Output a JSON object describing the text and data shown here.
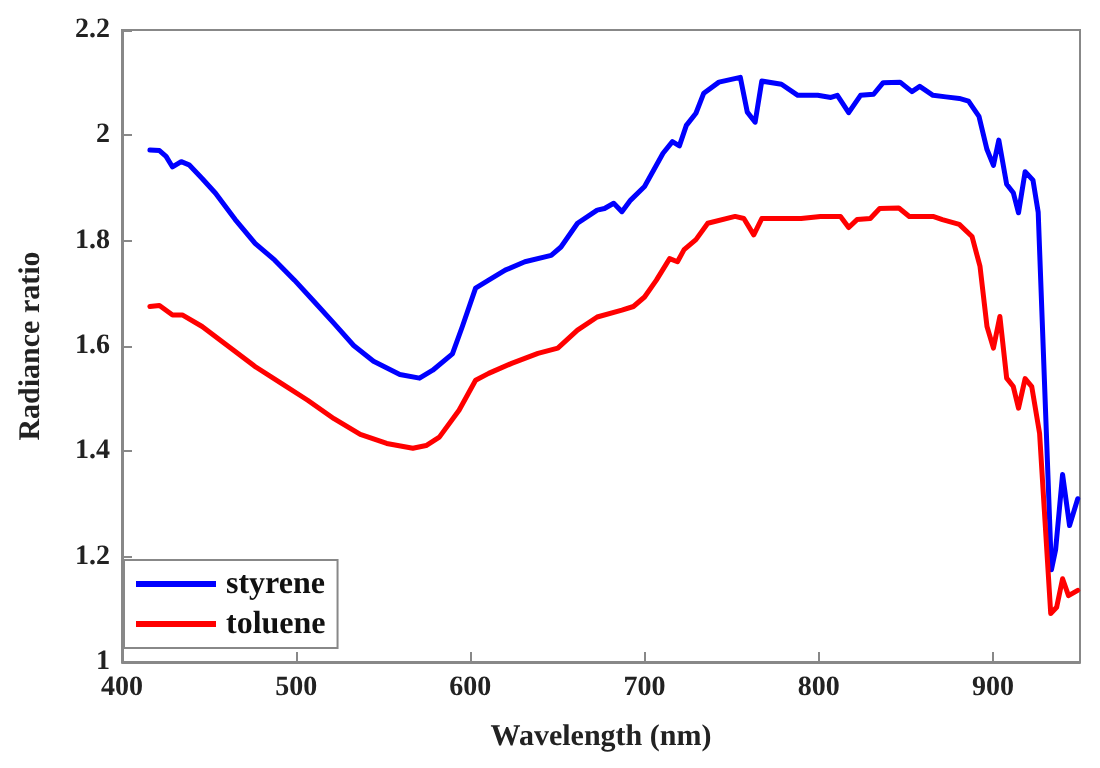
{
  "chart_data": {
    "type": "line",
    "xlabel": "Wavelength (nm)",
    "ylabel": "Radiance ratio",
    "xlim": [
      400,
      950
    ],
    "xticks": [
      400,
      500,
      600,
      700,
      800,
      900
    ],
    "ylim": [
      1,
      2.2
    ],
    "yticks": [
      1,
      1.2,
      1.4,
      1.6,
      1.8,
      2,
      2.2
    ],
    "grid": false,
    "legend": "bottom left",
    "marker": "none",
    "line_style": "solid",
    "series": [
      {
        "name": "styrene",
        "color": "#0000ff",
        "x": [
          416,
          421.5,
          425.3,
          429,
          434,
          438.5,
          446,
          453.7,
          465,
          476.4,
          487.7,
          499,
          510.4,
          521.7,
          533,
          544.4,
          559.5,
          570.8,
          578.4,
          589.7,
          595.4,
          603,
          610.5,
          620,
          631.3,
          646.4,
          652,
          661.5,
          672.8,
          677,
          682.3,
          687,
          692,
          700,
          710.6,
          716,
          720,
          724,
          729.5,
          734,
          742.7,
          755,
          759,
          763.5,
          767.3,
          778.6,
          788,
          799.4,
          807,
          810.7,
          817.2,
          824,
          831.5,
          837,
          846.7,
          853.5,
          858,
          865.6,
          873,
          880.7,
          886,
          892,
          896.6,
          900.3,
          903.4,
          907.9,
          911.7,
          914.7,
          918.5,
          923,
          926,
          933.6,
          936,
          940,
          944,
          948.7
        ],
        "values": [
          1.972,
          1.971,
          1.96,
          1.94,
          1.95,
          1.944,
          1.918,
          1.89,
          1.84,
          1.795,
          1.763,
          1.725,
          1.684,
          1.643,
          1.601,
          1.571,
          1.546,
          1.539,
          1.554,
          1.585,
          1.637,
          1.71,
          1.725,
          1.744,
          1.76,
          1.772,
          1.788,
          1.833,
          1.858,
          1.861,
          1.871,
          1.855,
          1.877,
          1.903,
          1.966,
          1.988,
          1.98,
          2.019,
          2.042,
          2.08,
          2.101,
          2.11,
          2.044,
          2.025,
          2.103,
          2.097,
          2.076,
          2.076,
          2.072,
          2.076,
          2.043,
          2.076,
          2.078,
          2.1,
          2.101,
          2.083,
          2.093,
          2.076,
          2.073,
          2.07,
          2.065,
          2.036,
          1.973,
          1.943,
          1.991,
          1.907,
          1.891,
          1.853,
          1.931,
          1.915,
          1.854,
          1.175,
          1.213,
          1.356,
          1.259,
          1.31
        ]
      },
      {
        "name": "toluene",
        "color": "#ff0000",
        "x": [
          416,
          421.5,
          429,
          434.6,
          446,
          461.2,
          476.4,
          491.5,
          506.6,
          521.7,
          536.8,
          552,
          567,
          574.6,
          582.2,
          593.5,
          603,
          610.5,
          623.7,
          638.8,
          650.2,
          661.5,
          672.8,
          687,
          693.6,
          700,
          706.8,
          714.4,
          718.9,
          722.7,
          729.5,
          736.3,
          752,
          757,
          762.7,
          767.3,
          789.9,
          801,
          812.5,
          817.2,
          822,
          829.6,
          835,
          846,
          852,
          865.6,
          871,
          880.7,
          888,
          892.6,
          896.6,
          900.3,
          904,
          907.9,
          911.7,
          914.7,
          918.5,
          922.3,
          926.8,
          933.2,
          936.6,
          940,
          943.4,
          948.7
        ],
        "values": [
          1.675,
          1.677,
          1.659,
          1.659,
          1.637,
          1.599,
          1.561,
          1.529,
          1.497,
          1.462,
          1.432,
          1.415,
          1.406,
          1.411,
          1.427,
          1.478,
          1.535,
          1.548,
          1.567,
          1.586,
          1.596,
          1.63,
          1.655,
          1.668,
          1.675,
          1.693,
          1.725,
          1.766,
          1.76,
          1.783,
          1.802,
          1.833,
          1.846,
          1.842,
          1.811,
          1.842,
          1.842,
          1.846,
          1.846,
          1.825,
          1.84,
          1.842,
          1.861,
          1.862,
          1.846,
          1.846,
          1.84,
          1.831,
          1.808,
          1.751,
          1.637,
          1.596,
          1.656,
          1.539,
          1.523,
          1.482,
          1.538,
          1.523,
          1.434,
          1.092,
          1.104,
          1.158,
          1.126,
          1.136
        ]
      }
    ]
  }
}
